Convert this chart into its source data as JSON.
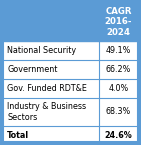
{
  "title_lines": [
    "CAGR",
    "2016-",
    "2024"
  ],
  "header_bg": "#5b9bd5",
  "header_text_color": "#ffffff",
  "table_bg": "#ffffff",
  "border_color": "#5b9bd5",
  "rows": [
    {
      "label": "National Security",
      "value": "49.1%",
      "bold": false
    },
    {
      "label": "Government",
      "value": "66.2%",
      "bold": false
    },
    {
      "label": "Gov. Funded RDT&E",
      "value": "4.0%",
      "bold": false
    },
    {
      "label": "Industry & Business\nSectors",
      "value": "68.3%",
      "bold": false
    },
    {
      "label": "Total",
      "value": "24.6%",
      "bold": true
    }
  ],
  "figsize": [
    1.41,
    1.45
  ],
  "dpi": 100
}
